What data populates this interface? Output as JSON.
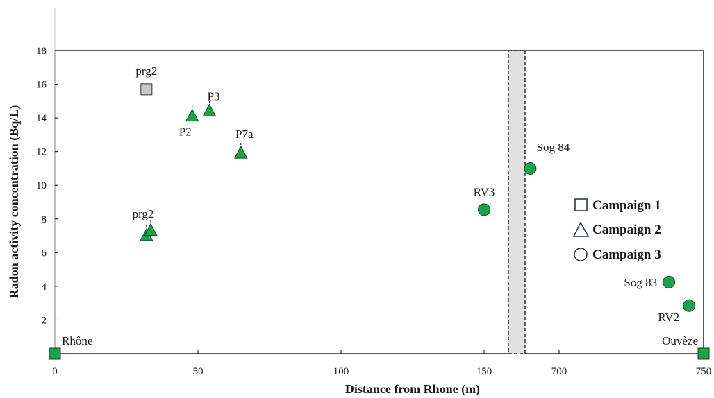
{
  "chart_data": {
    "type": "scatter",
    "xlabel": "Distance from Rhone (m)",
    "ylabel": "Radon activity concentration  (Bq/L)",
    "ylim": [
      0,
      18
    ],
    "grid": false,
    "legend_position": "right",
    "x_tick_labels": [
      "0",
      "50",
      "100",
      "150",
      "700",
      "750"
    ],
    "y_tick_labels": [
      "2",
      "4",
      "6",
      "8",
      "10",
      "12",
      "14",
      "16",
      "18"
    ],
    "x_axis_break": "between 150 and 700 (shaded band)",
    "legend": [
      {
        "label": "Campaign 1",
        "marker": "square"
      },
      {
        "label": "Campaign 2",
        "marker": "triangle"
      },
      {
        "label": "Campaign 3",
        "marker": "circle"
      }
    ],
    "endpoints": [
      {
        "label": "Rhône",
        "x": 0,
        "y": 0
      },
      {
        "label": "Ouvèze",
        "x": 750,
        "y": 0
      }
    ],
    "series": [
      {
        "campaign": 1,
        "marker": "square",
        "color": "#c8c8c8",
        "points": [
          {
            "x": 32,
            "y": 15.7,
            "label": "prg2"
          }
        ]
      },
      {
        "campaign": 2,
        "marker": "triangle",
        "color": "#1aa34a",
        "points": [
          {
            "x": 48,
            "y": 14.1,
            "label": "P2"
          },
          {
            "x": 54,
            "y": 14.4,
            "label": "P3"
          },
          {
            "x": 65,
            "y": 11.9,
            "label": "P7a"
          },
          {
            "x": 32,
            "y": 7.0,
            "label": ""
          },
          {
            "x": 33.5,
            "y": 7.3,
            "label": "prg2"
          }
        ]
      },
      {
        "campaign": 3,
        "marker": "circle",
        "color": "#1aa34a",
        "points": [
          {
            "x": 150,
            "y": 8.55,
            "label": "RV3"
          },
          {
            "x": 690,
            "y": 11.0,
            "label": "Sog 84"
          },
          {
            "x": 738,
            "y": 4.25,
            "label": "Sog 83"
          },
          {
            "x": 745,
            "y": 2.85,
            "label": "RV2"
          }
        ]
      }
    ]
  }
}
